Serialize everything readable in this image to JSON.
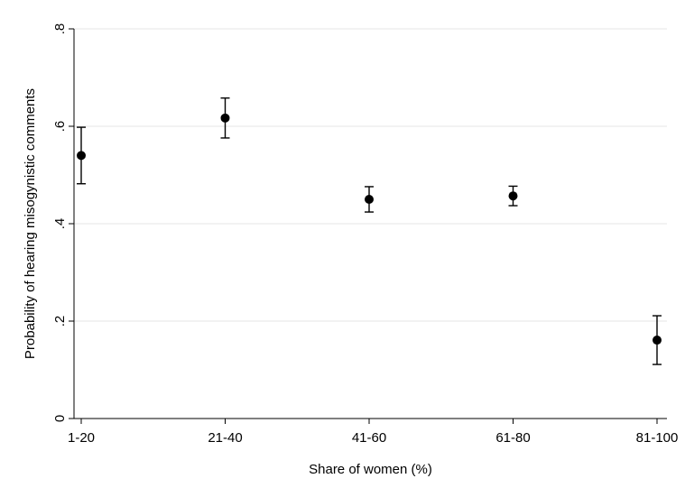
{
  "chart_data": {
    "type": "scatter",
    "title": "",
    "xlabel": "Share of women (%)",
    "ylabel": "Probability of hearing misogynistic comments",
    "categories": [
      "1-20",
      "21-40",
      "41-60",
      "61-80",
      "81-100"
    ],
    "series": [
      {
        "values": [
          0.54,
          0.617,
          0.45,
          0.457,
          0.161
        ],
        "ci_lower": [
          0.482,
          0.576,
          0.424,
          0.437,
          0.111
        ],
        "ci_upper": [
          0.598,
          0.658,
          0.476,
          0.477,
          0.211
        ]
      }
    ],
    "ylim": [
      0,
      0.8
    ],
    "yticks": [
      0,
      0.2,
      0.4,
      0.6,
      0.8
    ],
    "ytick_labels": [
      "0",
      ".2",
      ".4",
      ".6",
      ".8"
    ],
    "grid": true,
    "colors": {
      "marker": "#000000",
      "grid": "#e6e6e6",
      "axis": "#000000",
      "background": "#ffffff"
    }
  }
}
